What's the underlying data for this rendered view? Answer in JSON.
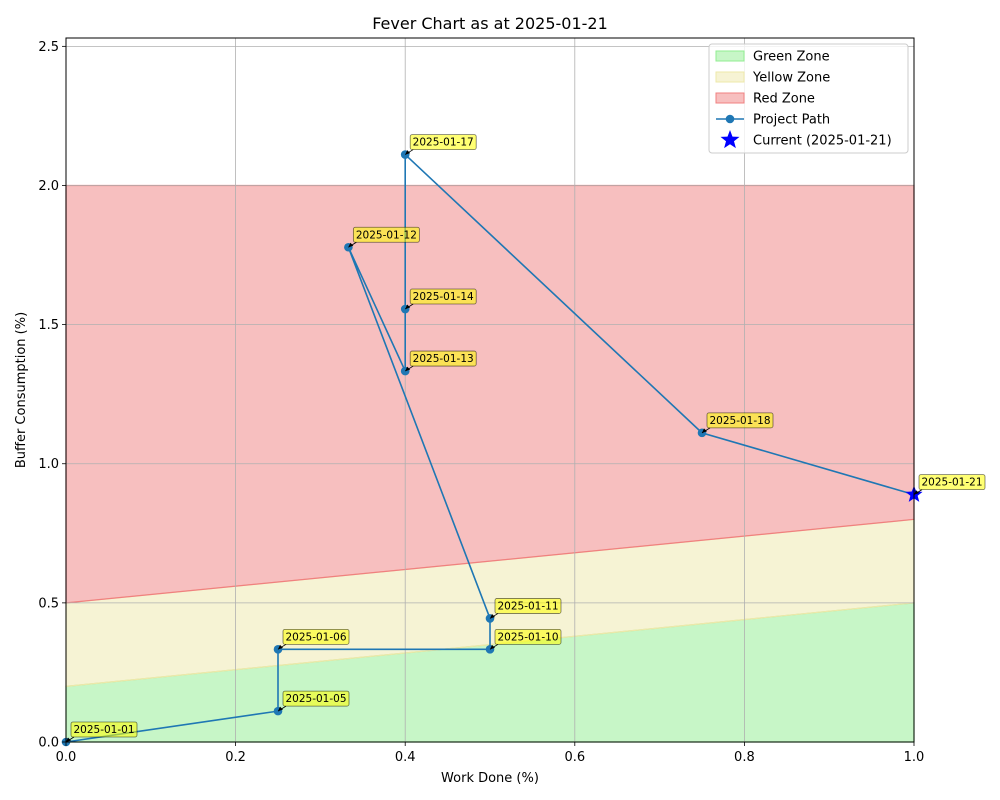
{
  "chart_data": {
    "type": "line",
    "title": "Fever Chart as at 2025-01-21",
    "xlabel": "Work Done (%)",
    "ylabel": "Buffer Consumption (%)",
    "xlim": [
      0.0,
      1.0
    ],
    "ylim": [
      0.0,
      2.53
    ],
    "x_ticks": [
      0.0,
      0.2,
      0.4,
      0.6,
      0.8,
      1.0
    ],
    "x_tick_labels": [
      "0.0",
      "0.2",
      "0.4",
      "0.6",
      "0.8",
      "1.0"
    ],
    "y_ticks": [
      0.0,
      0.5,
      1.0,
      1.5,
      2.0,
      2.5
    ],
    "y_tick_labels": [
      "0.0",
      "0.5",
      "1.0",
      "1.5",
      "2.0",
      "2.5"
    ],
    "grid": true,
    "legend_placement": "top-right",
    "zones": [
      {
        "name": "Green Zone",
        "color": "#90ee90",
        "lower": [
          [
            0.0,
            0.0
          ],
          [
            1.0,
            0.0
          ]
        ],
        "upper": [
          [
            0.0,
            0.2
          ],
          [
            1.0,
            0.5
          ]
        ]
      },
      {
        "name": "Yellow Zone",
        "color": "#eee8aa",
        "lower": [
          [
            0.0,
            0.2
          ],
          [
            1.0,
            0.5
          ]
        ],
        "upper": [
          [
            0.0,
            0.5
          ],
          [
            1.0,
            0.8
          ]
        ]
      },
      {
        "name": "Red Zone",
        "color": "#f08080",
        "lower": [
          [
            0.0,
            0.5
          ],
          [
            1.0,
            0.8
          ]
        ],
        "upper": [
          [
            0.0,
            2.0
          ],
          [
            1.0,
            2.0
          ]
        ]
      }
    ],
    "series": [
      {
        "name": "Project Path",
        "color": "#1f77b4",
        "points": [
          {
            "x": 0.0,
            "y": 0.0,
            "label": "2025-01-01"
          },
          {
            "x": 0.25,
            "y": 0.111,
            "label": "2025-01-05"
          },
          {
            "x": 0.25,
            "y": 0.333,
            "label": "2025-01-06"
          },
          {
            "x": 0.5,
            "y": 0.333,
            "label": "2025-01-10"
          },
          {
            "x": 0.5,
            "y": 0.444,
            "label": "2025-01-11"
          },
          {
            "x": 0.333,
            "y": 1.778,
            "label": "2025-01-12"
          },
          {
            "x": 0.4,
            "y": 1.333,
            "label": "2025-01-13"
          },
          {
            "x": 0.4,
            "y": 1.556,
            "label": "2025-01-14"
          },
          {
            "x": 0.4,
            "y": 2.111,
            "label": "2025-01-17"
          },
          {
            "x": 0.75,
            "y": 1.111,
            "label": "2025-01-18"
          },
          {
            "x": 1.0,
            "y": 0.889,
            "label": "2025-01-21"
          }
        ]
      }
    ],
    "current": {
      "name": "Current (2025-01-21)",
      "x": 1.0,
      "y": 0.889,
      "color": "#0000ff",
      "marker": "star-icon"
    },
    "legend": [
      "Green Zone",
      "Yellow Zone",
      "Red Zone",
      "Project Path",
      "Current (2025-01-21)"
    ],
    "annotation_color": "#ffff00"
  }
}
